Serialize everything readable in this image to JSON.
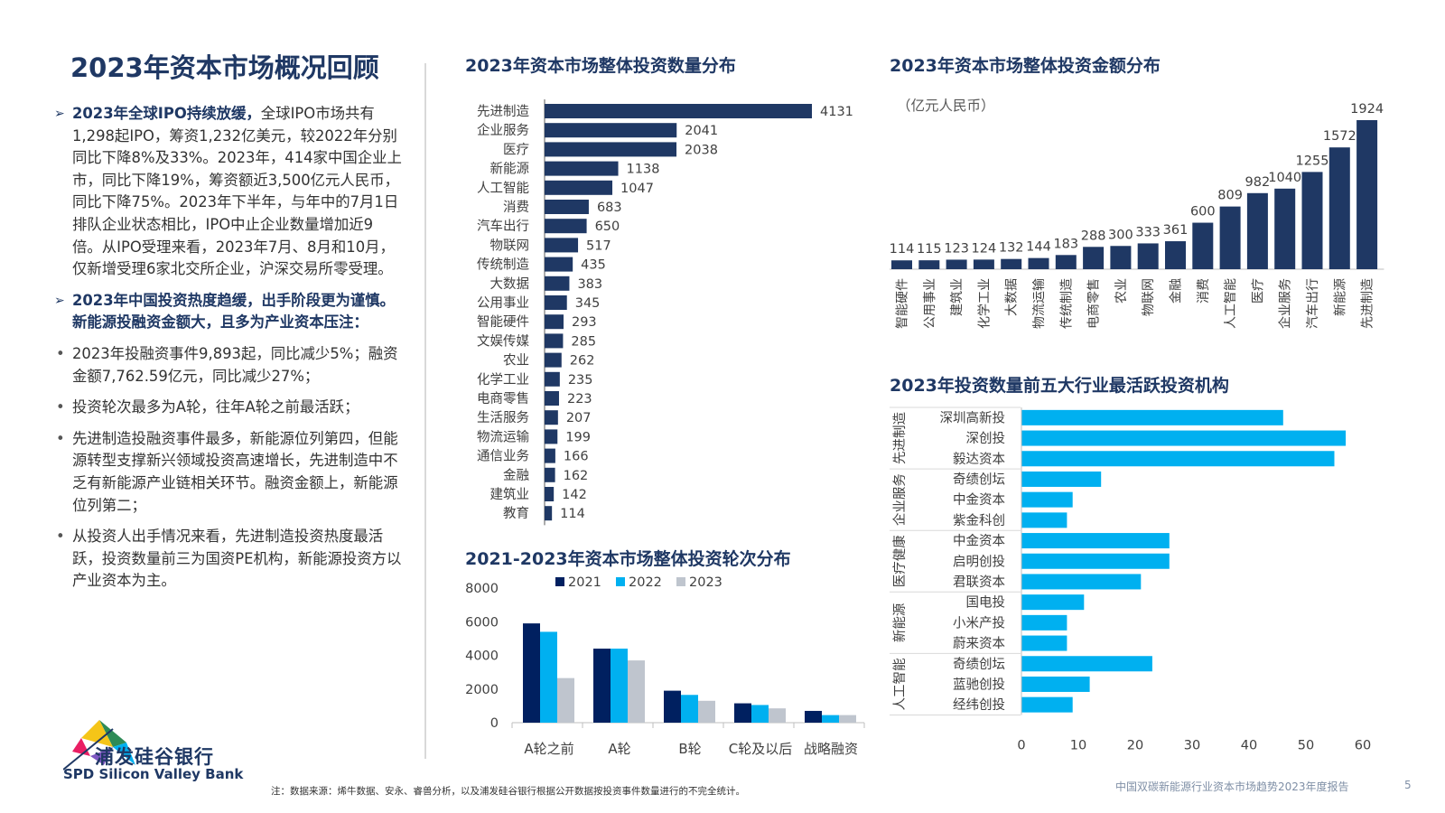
{
  "page": {
    "title": "2023年资本市场概况回顾",
    "footer": "中国双碳新能源行业资本市场趋势2023年度报告",
    "page_number": "5",
    "note": "注：数据来源：烯牛数据、安永、睿兽分析，以及浦发硅谷银行根据公开数据按投资事件数量进行的不完全统计。",
    "logo_cn": "浦发硅谷银行",
    "logo_en": "SPD Silicon Valley Bank"
  },
  "left": {
    "p1_bold": "2023年全球IPO持续放缓，",
    "p1_text": "全球IPO市场共有1,298起IPO，筹资1,232亿美元，较2022年分别同比下降8%及33%。2023年，414家中国企业上市，同比下降19%，筹资额近3,500亿元人民币，同比下降75%。2023年下半年，与年中的7月1日排队企业状态相比，IPO中止企业数量增加近9倍。从IPO受理来看，2023年7月、8月和10月，仅新增受理6家北交所企业，沪深交易所零受理。",
    "p2_bold": "2023年中国投资热度趋缓，出手阶段更为谨慎。新能源投融资金额大，且多为产业资本压注：",
    "b1": "2023年投融资事件9,893起，同比减少5%；融资金额7,762.59亿元，同比减少27%；",
    "b2": "投资轮次最多为A轮，往年A轮之前最活跃；",
    "b3": "先进制造投融资事件最多，新能源位列第四，但能源转型支撑新兴领域投资高速增长，先进制造中不乏有新能源产业链相关环节。融资金额上，新能源位列第二；",
    "b4": "从投资人出手情况来看，先进制造投资热度最活跃，投资数量前三为国资PE机构，新能源投资方以产业资本为主。"
  },
  "colors": {
    "navy": "#1f3864",
    "cyan": "#00b0f0",
    "gray": "#bfc5ce",
    "dark_navy": "#002060"
  },
  "chart_data": [
    {
      "id": "count",
      "type": "bar",
      "title": "2023年资本市场整体投资数量分布",
      "categories": [
        "先进制造",
        "企业服务",
        "医疗",
        "新能源",
        "人工智能",
        "消费",
        "汽车出行",
        "物联网",
        "传统制造",
        "大数据",
        "公用事业",
        "智能硬件",
        "文娱传媒",
        "农业",
        "化学工业",
        "电商零售",
        "生活服务",
        "物流运输",
        "通信业务",
        "金融",
        "建筑业",
        "教育"
      ],
      "values": [
        4131,
        2041,
        2038,
        1138,
        1047,
        683,
        650,
        517,
        435,
        383,
        345,
        293,
        285,
        262,
        235,
        223,
        207,
        199,
        166,
        162,
        142,
        114
      ]
    },
    {
      "id": "amount",
      "type": "bar",
      "title": "2023年资本市场整体投资金额分布",
      "unit": "（亿元人民币）",
      "categories": [
        "智能硬件",
        "公用事业",
        "建筑业",
        "化学工业",
        "大数据",
        "物流运输",
        "传统制造",
        "电商零售",
        "农业",
        "物联网",
        "金融",
        "消费",
        "人工智能",
        "医疗",
        "企业服务",
        "汽车出行",
        "新能源",
        "先进制造"
      ],
      "values": [
        114,
        115,
        123,
        124,
        132,
        144,
        183,
        288,
        300,
        333,
        361,
        600,
        809,
        982,
        1040,
        1255,
        1572,
        1924
      ]
    },
    {
      "id": "rounds",
      "type": "bar",
      "title": "2021-2023年资本市场整体投资轮次分布",
      "categories": [
        "A轮之前",
        "A轮",
        "B轮",
        "C轮及以后",
        "战略融资"
      ],
      "series": [
        {
          "name": "2021",
          "values": [
            5900,
            4400,
            1900,
            1150,
            700
          ]
        },
        {
          "name": "2022",
          "values": [
            5400,
            4400,
            1650,
            1050,
            450
          ]
        },
        {
          "name": "2023",
          "values": [
            2650,
            3700,
            1300,
            850,
            450
          ]
        }
      ],
      "ylim": [
        0,
        8000
      ],
      "yticks": [
        "8000",
        "6000",
        "4000",
        "2000",
        "0"
      ]
    },
    {
      "id": "investors",
      "type": "bar",
      "title": "2023年投资数量前五大行业最活跃投资机构",
      "groups": [
        {
          "name": "先进制造",
          "items": [
            {
              "label": "深圳高新投",
              "value": 46
            },
            {
              "label": "深创投",
              "value": 57
            },
            {
              "label": "毅达资本",
              "value": 55
            }
          ]
        },
        {
          "name": "企业服务",
          "items": [
            {
              "label": "奇绩创坛",
              "value": 14
            },
            {
              "label": "中金资本",
              "value": 9
            },
            {
              "label": "紫金科创",
              "value": 8
            }
          ]
        },
        {
          "name": "医疗健康",
          "items": [
            {
              "label": "中金资本",
              "value": 26
            },
            {
              "label": "启明创投",
              "value": 26
            },
            {
              "label": "君联资本",
              "value": 21
            }
          ]
        },
        {
          "name": "新能源",
          "items": [
            {
              "label": "国电投",
              "value": 11
            },
            {
              "label": "小米产投",
              "value": 8
            },
            {
              "label": "蔚来资本",
              "value": 8
            }
          ]
        },
        {
          "name": "人工智能",
          "items": [
            {
              "label": "奇绩创坛",
              "value": 23
            },
            {
              "label": "蓝驰创投",
              "value": 12
            },
            {
              "label": "经纬创投",
              "value": 9
            }
          ]
        }
      ],
      "xlim": [
        0,
        60
      ],
      "xticks": [
        "0",
        "10",
        "20",
        "30",
        "40",
        "50",
        "60"
      ]
    }
  ]
}
